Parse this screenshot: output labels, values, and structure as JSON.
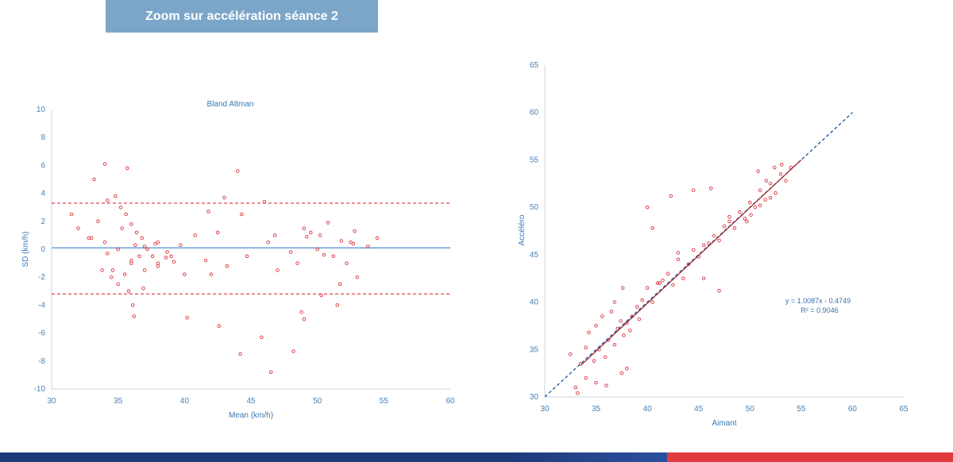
{
  "header": {
    "title": "Zoom sur accélération séance 2"
  },
  "colors": {
    "banner": "#7ba6c9",
    "points": "#d9343c",
    "axis_text": "#4a7fb6",
    "mean_line": "#8ab4e0",
    "limit_line": "#d9343c",
    "regression": "#a0202a",
    "identity": "#2a5fa0",
    "footer_blue": "#1e3a78",
    "footer_red": "#e03a3e"
  },
  "chart_data": [
    {
      "type": "scatter",
      "title": "Bland Altman",
      "xlabel": "Mean (km/h)",
      "ylabel": "SD (km/h)",
      "xlim": [
        30,
        60
      ],
      "ylim": [
        -10,
        10
      ],
      "xticks": [
        30,
        35,
        40,
        45,
        50,
        55,
        60
      ],
      "yticks": [
        10,
        8,
        6,
        4,
        2,
        0,
        -2,
        -4,
        -6,
        -8,
        -10
      ],
      "mean_line": 0.1,
      "upper_limit": 3.3,
      "lower_limit": -3.2,
      "grid": false,
      "x": [
        33.2,
        34.0,
        35.7,
        44.0,
        43.0,
        46.0,
        44.3,
        41.8,
        42.5,
        46.8,
        44.2,
        48.2,
        49.0,
        48.8,
        46.5,
        45.8,
        42.6,
        40.2,
        36.1,
        36.2,
        50.3,
        51.5,
        51.7,
        53.0,
        52.2,
        52.5,
        49.0,
        49.5,
        50.8,
        50.0,
        48.5,
        47.0,
        46.3,
        44.7,
        43.2,
        42.0,
        41.6,
        40.8,
        39.7,
        38.7,
        38.0,
        31.5,
        32.0,
        32.8,
        33.5,
        34.2,
        34.8,
        35.2,
        35.6,
        36.0,
        36.4,
        36.8,
        37.2,
        37.6,
        38.0,
        33.8,
        34.5,
        35.0,
        35.5,
        36.0,
        36.6,
        37.0,
        34.0,
        35.0,
        36.0,
        37.0,
        38.0,
        39.0,
        35.3,
        36.3,
        34.2,
        33.0,
        37.8,
        38.6,
        36.9,
        35.8,
        34.6,
        40.0,
        39.2,
        54.5,
        53.8,
        52.8,
        51.8,
        50.5,
        49.2,
        48.0,
        50.2,
        51.2,
        52.7
      ],
      "y": [
        5.0,
        6.1,
        5.8,
        5.6,
        3.7,
        3.4,
        2.5,
        2.7,
        1.2,
        1.0,
        -7.5,
        -7.3,
        -5.0,
        -4.5,
        -8.8,
        -6.3,
        -5.5,
        -4.9,
        -4.0,
        -4.8,
        -3.3,
        -4.0,
        -2.5,
        -2.0,
        -1.0,
        0.5,
        1.5,
        1.2,
        1.9,
        0.0,
        -1.0,
        -1.5,
        0.5,
        -0.5,
        -1.2,
        -1.8,
        -0.8,
        1.0,
        0.3,
        -0.2,
        0.5,
        2.5,
        1.5,
        0.8,
        2.0,
        3.5,
        3.8,
        3.0,
        2.5,
        1.8,
        1.2,
        0.8,
        0.0,
        -0.5,
        -1.0,
        -1.5,
        -2.0,
        -2.5,
        -1.8,
        -1.0,
        -0.5,
        0.2,
        0.5,
        0.0,
        -0.8,
        -1.5,
        -1.2,
        -0.5,
        1.5,
        0.3,
        -0.3,
        0.8,
        0.4,
        -0.6,
        -2.8,
        -3.0,
        -1.5,
        -1.8,
        -0.9,
        0.8,
        0.2,
        1.3,
        0.6,
        -0.4,
        0.9,
        -0.2,
        1.0,
        -0.5,
        0.4
      ]
    },
    {
      "type": "scatter",
      "title": "",
      "xlabel": "Aimant",
      "ylabel": "Accéléro",
      "xlim": [
        30,
        65
      ],
      "ylim": [
        30,
        65
      ],
      "xticks": [
        30,
        35,
        40,
        45,
        50,
        55,
        60,
        65
      ],
      "yticks": [
        65,
        60,
        55,
        50,
        45,
        40,
        35,
        30
      ],
      "grid": false,
      "annotation": {
        "equation": "y = 1.0087x - 0.4749",
        "r2": "R² = 0.9046"
      },
      "trendline": {
        "slope": 1.0087,
        "intercept": -0.4749
      },
      "x": [
        32.5,
        33.0,
        33.5,
        34.0,
        34.3,
        34.8,
        35.0,
        35.3,
        35.6,
        35.9,
        36.2,
        36.5,
        36.8,
        37.1,
        37.4,
        37.7,
        38.0,
        38.5,
        39.0,
        39.5,
        40.0,
        40.5,
        41.0,
        41.5,
        42.0,
        42.5,
        43.0,
        43.5,
        44.0,
        44.5,
        45.0,
        45.5,
        46.0,
        46.5,
        47.0,
        47.5,
        48.0,
        48.5,
        49.0,
        49.5,
        50.0,
        50.5,
        51.0,
        51.5,
        52.0,
        52.5,
        53.0,
        53.5,
        54.0,
        40.0,
        40.5,
        42.3,
        44.5,
        43.0,
        45.5,
        47.0,
        48.0,
        46.2,
        38.0,
        37.5,
        36.0,
        35.0,
        34.0,
        33.2,
        36.8,
        37.6,
        38.3,
        39.2,
        41.2,
        50.8,
        51.6,
        52.4,
        49.7,
        50.1,
        51.0,
        53.1,
        52.0
      ],
      "y": [
        34.5,
        31.0,
        33.5,
        35.2,
        36.8,
        33.8,
        37.5,
        35.0,
        38.5,
        34.2,
        36.0,
        39.0,
        35.5,
        37.2,
        38.0,
        36.5,
        37.8,
        38.5,
        39.5,
        40.2,
        41.5,
        40.0,
        42.0,
        42.3,
        43.0,
        41.8,
        44.5,
        42.5,
        44.0,
        45.5,
        44.8,
        46.0,
        46.2,
        47.0,
        46.5,
        48.0,
        48.5,
        47.8,
        49.5,
        48.8,
        50.5,
        50.0,
        51.8,
        50.8,
        52.5,
        51.5,
        53.5,
        52.8,
        54.2,
        50.0,
        47.8,
        51.2,
        51.8,
        45.2,
        42.5,
        41.2,
        49.0,
        52.0,
        33.0,
        32.5,
        31.2,
        31.5,
        32.0,
        30.4,
        40.0,
        41.5,
        37.0,
        38.2,
        42.0,
        53.8,
        52.8,
        54.2,
        48.5,
        49.2,
        50.2,
        54.5,
        51.0
      ]
    }
  ]
}
